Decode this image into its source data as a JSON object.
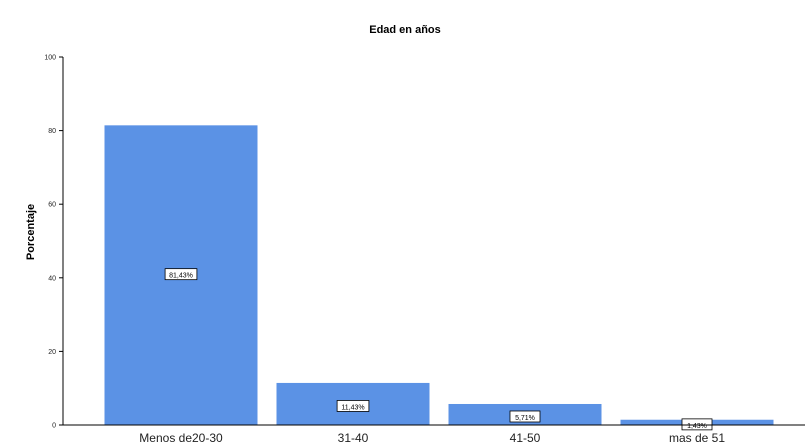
{
  "chart_data": {
    "type": "bar",
    "title": "Edad en años",
    "ylabel": "Porcentaje",
    "xlabel": "",
    "categories": [
      "Menos de20-30",
      "31-40",
      "41-50",
      "mas de 51"
    ],
    "values": [
      81.43,
      11.43,
      5.71,
      1.43
    ],
    "data_labels": [
      "81,43%",
      "11,43%",
      "5,71%",
      "1,43%"
    ],
    "ylim": [
      0,
      100
    ],
    "yticks": [
      0,
      20,
      40,
      60,
      80,
      100
    ],
    "ytick_labels": [
      "0",
      "20",
      "40",
      "60",
      "80",
      "100"
    ],
    "grid": false,
    "bar_color": "#5b92e5"
  }
}
